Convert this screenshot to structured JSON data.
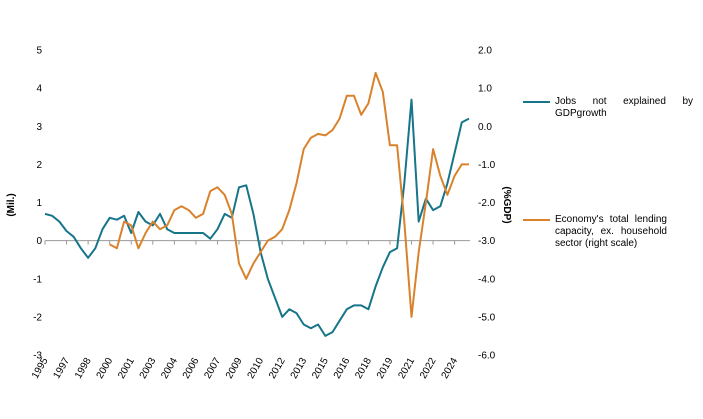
{
  "chart_data": {
    "type": "line",
    "y_label": "(Mil.)",
    "y2_label": "(%GDP)",
    "categories": [
      "1995",
      null,
      null,
      "1997",
      null,
      null,
      "1998",
      null,
      null,
      "2000",
      null,
      null,
      "2001",
      null,
      null,
      "2003",
      null,
      null,
      "2004",
      null,
      null,
      "2006",
      null,
      null,
      "2007",
      null,
      null,
      "2009",
      null,
      null,
      "2010",
      null,
      null,
      "2012",
      null,
      null,
      "2013",
      null,
      null,
      "2015",
      null,
      null,
      "2016",
      null,
      null,
      "2018",
      null,
      null,
      "2019",
      null,
      null,
      "2021",
      null,
      null,
      "2022",
      null,
      null,
      "2024",
      null,
      null
    ],
    "series": [
      {
        "name": "Jobs not explained by GDPgrowth",
        "color": "#17758a",
        "axis": "y",
        "values": [
          0.7,
          0.65,
          0.5,
          0.25,
          0.1,
          -0.2,
          -0.45,
          -0.2,
          0.3,
          0.6,
          0.55,
          0.65,
          0.2,
          0.75,
          0.5,
          0.4,
          0.7,
          0.3,
          0.2,
          0.2,
          0.2,
          0.2,
          0.2,
          0.05,
          0.3,
          0.7,
          0.6,
          1.4,
          1.45,
          0.7,
          -0.3,
          -1.0,
          -1.5,
          -2.0,
          -1.8,
          -1.9,
          -2.2,
          -2.3,
          -2.2,
          -2.5,
          -2.4,
          -2.1,
          -1.8,
          -1.7,
          -1.7,
          -1.8,
          -1.2,
          -0.7,
          -0.3,
          -0.2,
          1.5,
          3.7,
          0.5,
          1.1,
          0.8,
          0.9,
          1.5,
          2.3,
          3.1,
          3.2
        ]
      },
      {
        "name": "Economy's total lending capacity, ex. household sector (right scale)",
        "color": "#d9822b",
        "axis": "y2",
        "values": [
          null,
          null,
          null,
          null,
          null,
          null,
          null,
          null,
          null,
          -3.1,
          -3.2,
          -2.5,
          -2.6,
          -3.2,
          -2.8,
          -2.5,
          -2.7,
          -2.6,
          -2.2,
          -2.1,
          -2.2,
          -2.4,
          -2.3,
          -1.7,
          -1.6,
          -1.8,
          -2.3,
          -3.6,
          -4.0,
          -3.6,
          -3.3,
          -3.0,
          -2.9,
          -2.7,
          -2.2,
          -1.5,
          -0.6,
          -0.3,
          -0.2,
          -0.24,
          -0.1,
          0.2,
          0.8,
          0.8,
          0.3,
          0.6,
          1.4,
          0.9,
          -0.5,
          -0.5,
          -2.5,
          -5.0,
          -3.3,
          -2.0,
          -0.6,
          -1.3,
          -1.8,
          -1.3,
          -1.0,
          -1.0
        ]
      }
    ],
    "ylim": [
      -3,
      5
    ],
    "yticks": [
      5,
      4,
      3,
      2,
      1,
      0,
      -1,
      -2,
      -3
    ],
    "y2lim": [
      -6,
      2
    ],
    "y2ticks": [
      {
        "value": 2,
        "label": "2.0"
      },
      {
        "value": 1,
        "label": "1.0"
      },
      {
        "value": 0,
        "label": "0.0"
      },
      {
        "value": -1,
        "label": "-1.0"
      },
      {
        "value": -2,
        "label": "-2.0"
      },
      {
        "value": -3,
        "label": "-3.0"
      },
      {
        "value": -4,
        "label": "-4.0"
      },
      {
        "value": -5,
        "label": "-5.0"
      },
      {
        "value": -6,
        "label": "-6.0"
      }
    ]
  }
}
